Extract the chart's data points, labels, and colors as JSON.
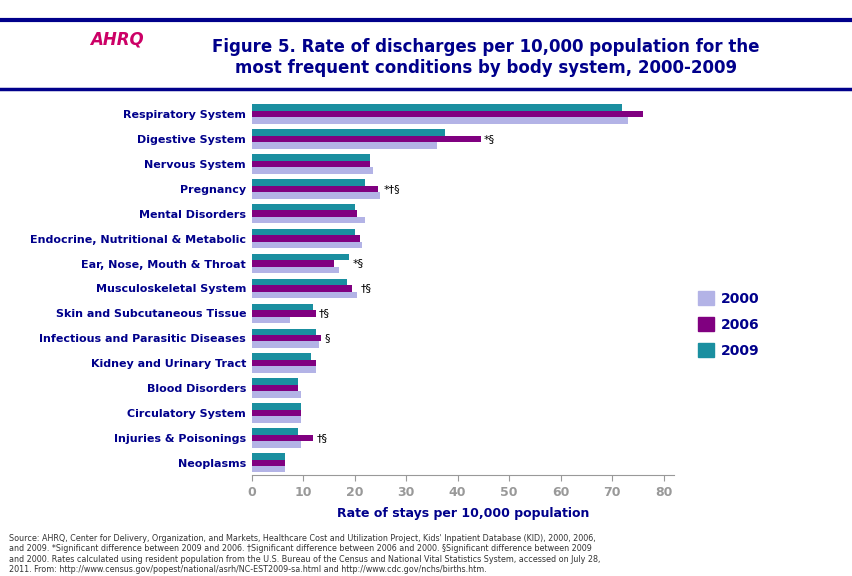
{
  "title": "Figure 5. Rate of discharges per 10,000 population for the\nmost frequent conditions by body system, 2000-2009",
  "xlabel": "Rate of stays per 10,000 population",
  "categories": [
    "Respiratory System",
    "Digestive System",
    "Nervous System",
    "Pregnancy",
    "Mental Disorders",
    "Endocrine, Nutritional & Metabolic",
    "Ear, Nose, Mouth & Throat",
    "Musculoskeletal System",
    "Skin and Subcutaneous Tissue",
    "Infectious and Parasitic Diseases",
    "Kidney and Urinary Tract",
    "Blood Disorders",
    "Circulatory System",
    "Injuries & Poisonings",
    "Neoplasms"
  ],
  "values_2000": [
    73.0,
    36.0,
    23.5,
    25.0,
    22.0,
    21.5,
    17.0,
    20.5,
    7.5,
    13.0,
    12.5,
    9.5,
    9.5,
    9.5,
    6.5
  ],
  "values_2006": [
    76.0,
    44.5,
    23.0,
    24.5,
    20.5,
    21.0,
    16.0,
    19.5,
    12.5,
    13.5,
    12.5,
    9.0,
    9.5,
    12.0,
    6.5
  ],
  "values_2009": [
    72.0,
    37.5,
    23.0,
    22.0,
    20.0,
    20.0,
    19.0,
    18.5,
    12.0,
    12.5,
    11.5,
    9.0,
    9.5,
    9.0,
    6.5
  ],
  "annotations": [
    "",
    "*§",
    "",
    "*†§",
    "",
    "",
    "*§",
    "†§",
    "†§",
    "§",
    "",
    "",
    "",
    "†§",
    ""
  ],
  "color_2000": "#b3b3e6",
  "color_2006": "#800080",
  "color_2009": "#1a8fa0",
  "xlim_max": 82,
  "xticks": [
    0,
    10,
    20,
    30,
    40,
    50,
    60,
    70,
    80
  ],
  "bar_height": 0.26,
  "title_color": "#00008B",
  "label_color": "#00008B",
  "tick_color": "#00008B",
  "background_color": "#ffffff",
  "header_bg": "#e8eef8",
  "header_border_top": "#00008B",
  "header_border_bottom": "#00008B",
  "source_text": "Source: AHRQ, Center for Delivery, Organization, and Markets, Healthcare Cost and Utilization Project, Kids' Inpatient Database (KID), 2000, 2006,\nand 2009. *Significant difference between 2009 and 2006. †Significant difference between 2006 and 2000. §Significant difference between 2009\nand 2000. Rates calculated using resident population from the U.S. Bureau of the Census and National Vital Statistics System, accessed on July 28,\n2011. From: http://www.census.gov/popest/national/asrh/NC-EST2009-sa.html and http://www.cdc.gov/nchs/births.htm."
}
